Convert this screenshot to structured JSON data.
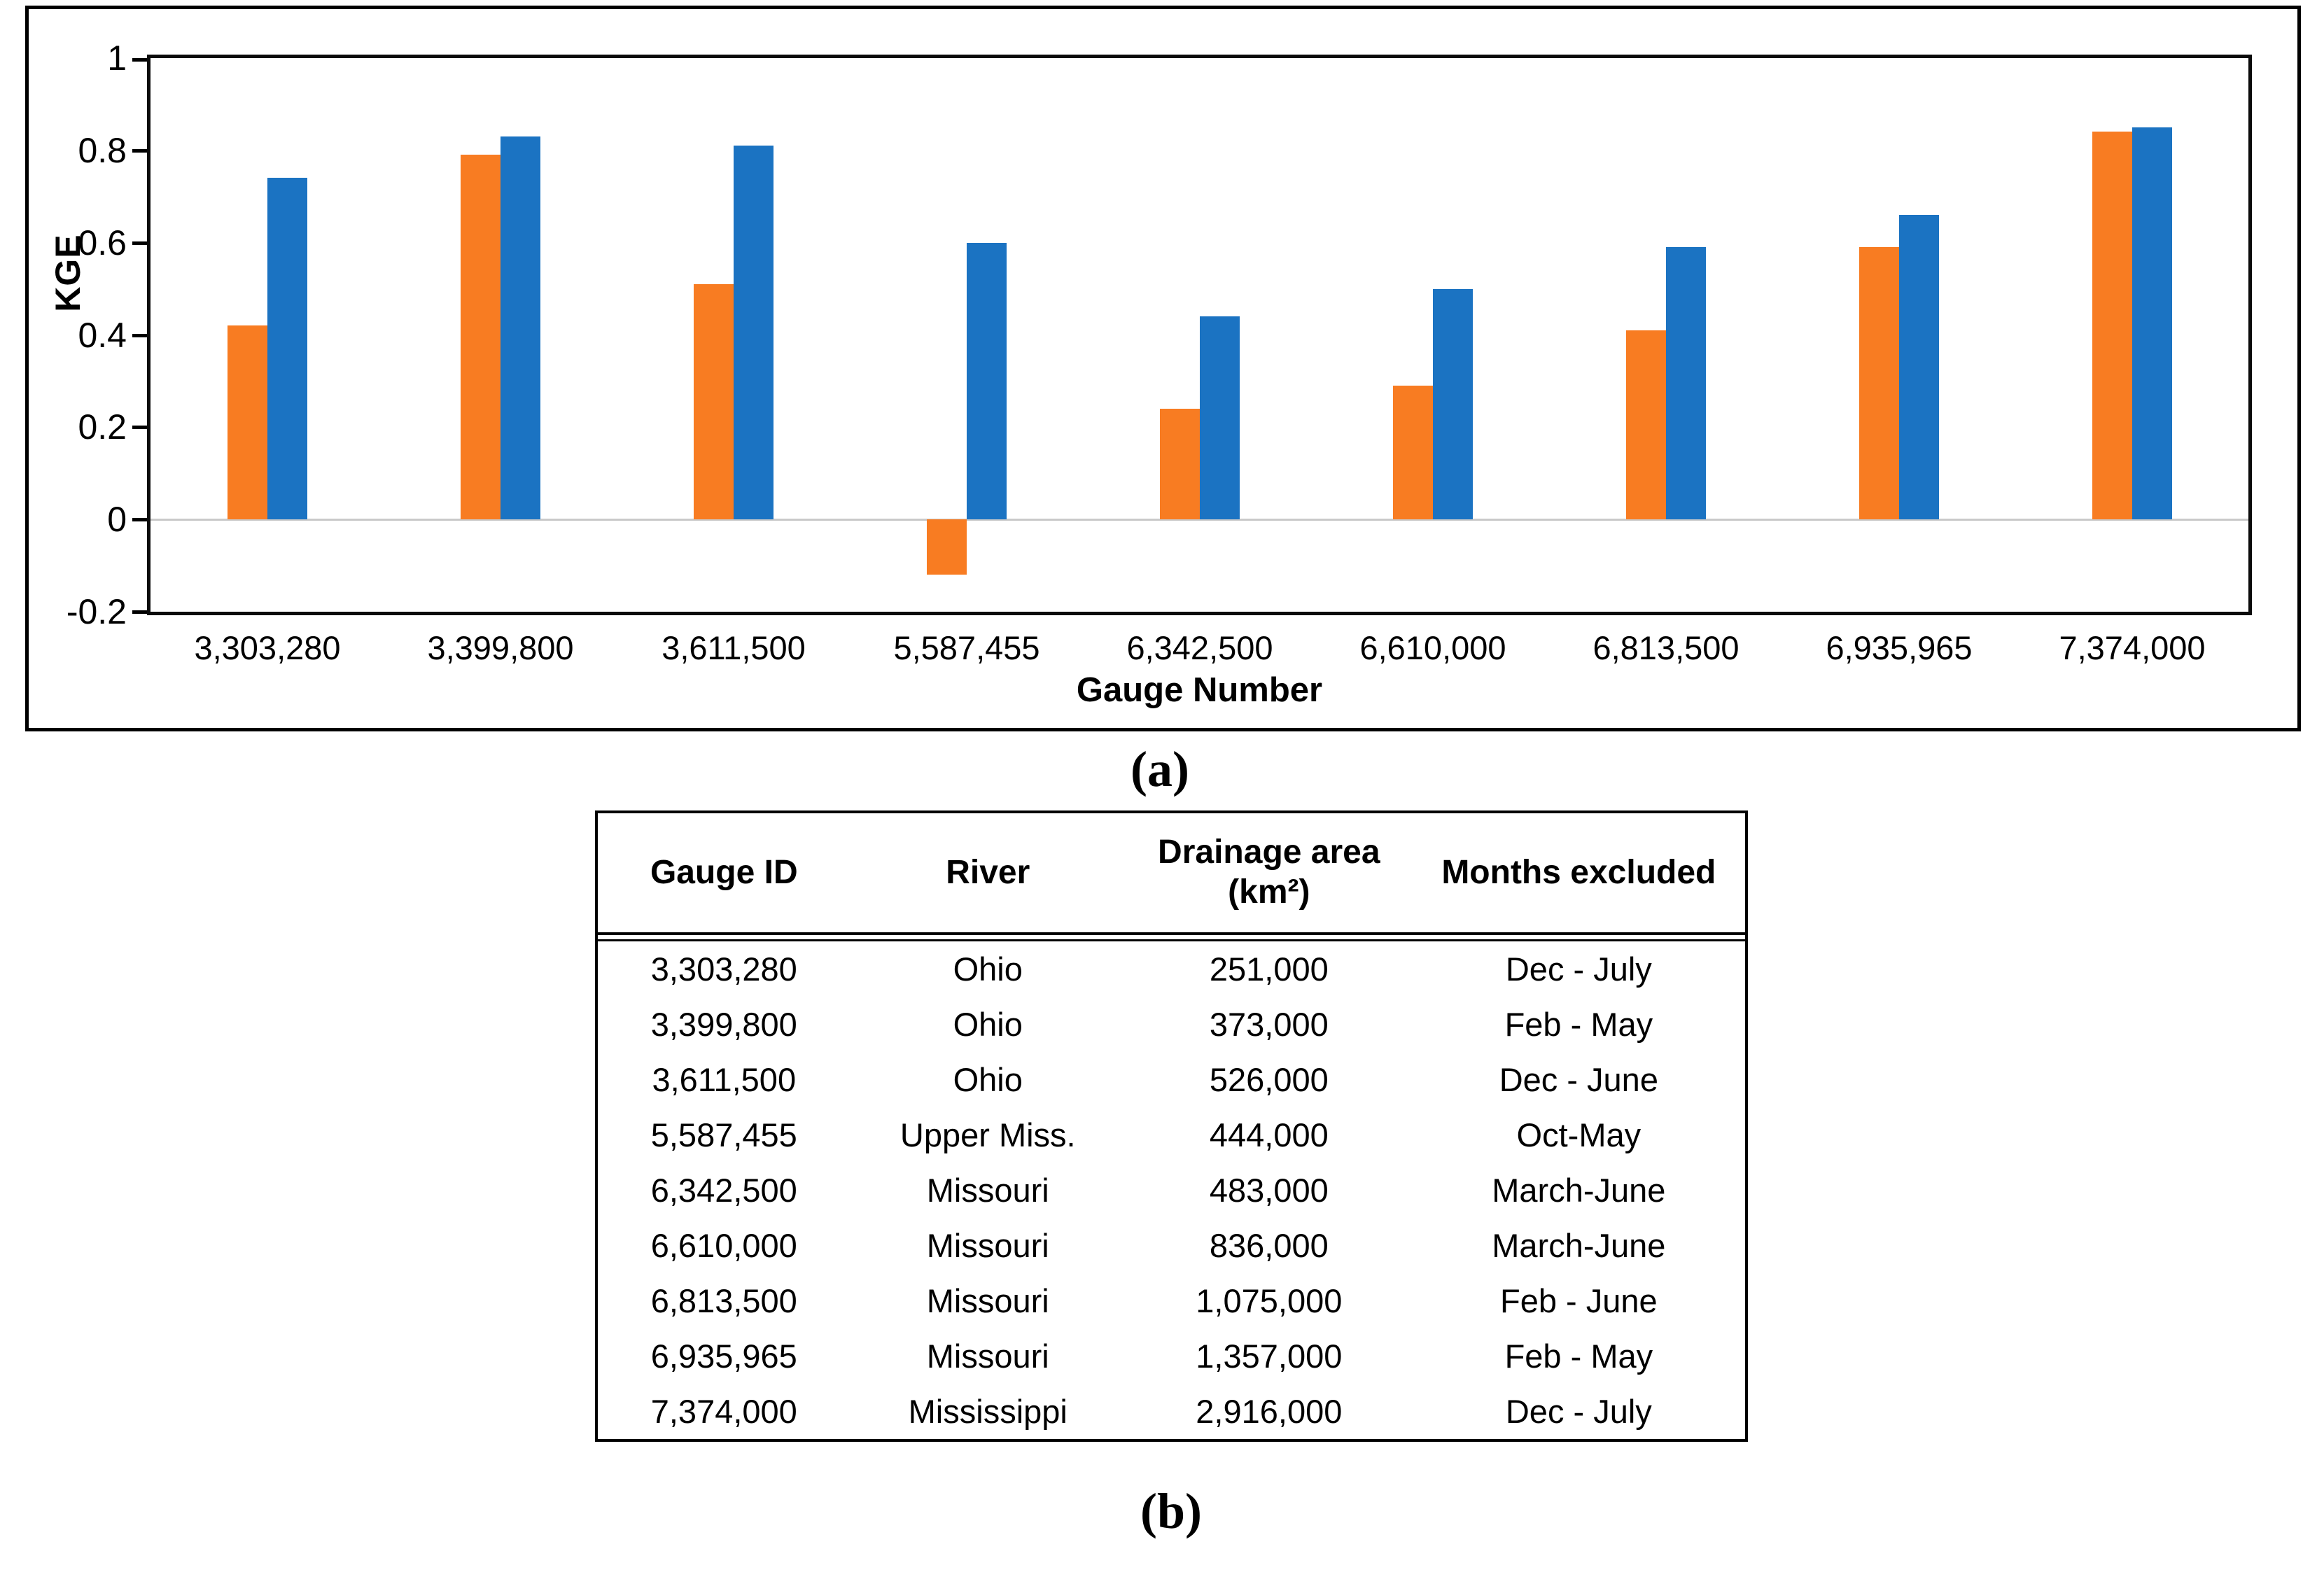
{
  "labels": {
    "panel_a": "(a)",
    "panel_b": "(b)"
  },
  "colors": {
    "series_orange": "#F87C22",
    "series_blue": "#1B73C2",
    "axis": "#000000",
    "zero_line": "#C9C9C9"
  },
  "chart_data": [
    {
      "type": "bar",
      "title": "",
      "xlabel": "Gauge Number",
      "ylabel": "KGE",
      "ylim": [
        -0.2,
        1.0
      ],
      "yticks": [
        1,
        0.8,
        0.6,
        0.4,
        0.2,
        0,
        -0.2
      ],
      "ytick_labels": [
        "1",
        "0.8",
        "0.6",
        "0.4",
        "0.2",
        "0",
        "-0.2"
      ],
      "grid": "zero-line-only",
      "legend": "none",
      "categories": [
        "3,303,280",
        "3,399,800",
        "3,611,500",
        "5,587,455",
        "6,342,500",
        "6,610,000",
        "6,813,500",
        "6,935,965",
        "7,374,000"
      ],
      "series": [
        {
          "name": "series-orange",
          "color": "#F87C22",
          "values": [
            0.42,
            0.79,
            0.51,
            -0.12,
            0.24,
            0.29,
            0.41,
            0.59,
            0.84
          ]
        },
        {
          "name": "series-blue",
          "color": "#1B73C2",
          "values": [
            0.74,
            0.83,
            0.81,
            0.6,
            0.44,
            0.5,
            0.59,
            0.66,
            0.85
          ]
        }
      ]
    },
    {
      "type": "table",
      "headers": [
        "Gauge ID",
        "River",
        "Drainage area (km²)",
        "Months excluded"
      ],
      "rows": [
        [
          "3,303,280",
          "Ohio",
          "251,000",
          "Dec - July"
        ],
        [
          "3,399,800",
          "Ohio",
          "373,000",
          "Feb - May"
        ],
        [
          "3,611,500",
          "Ohio",
          "526,000",
          "Dec - June"
        ],
        [
          "5,587,455",
          "Upper Miss.",
          "444,000",
          "Oct-May"
        ],
        [
          "6,342,500",
          "Missouri",
          "483,000",
          "March-June"
        ],
        [
          "6,610,000",
          "Missouri",
          "836,000",
          "March-June"
        ],
        [
          "6,813,500",
          "Missouri",
          "1,075,000",
          "Feb - June"
        ],
        [
          "6,935,965",
          "Missouri",
          "1,357,000",
          "Feb - May"
        ],
        [
          "7,374,000",
          "Mississippi",
          "2,916,000",
          "Dec - July"
        ]
      ]
    }
  ]
}
